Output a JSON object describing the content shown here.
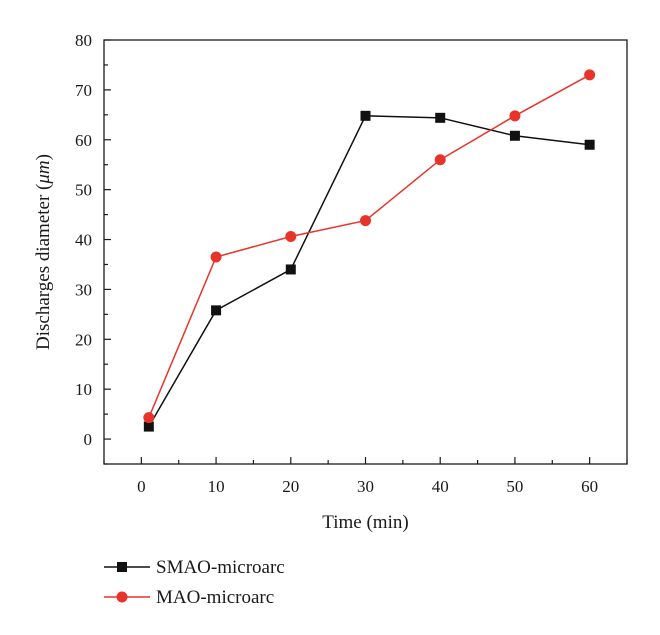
{
  "chart_data": {
    "type": "line",
    "title": "",
    "xlabel": "Time (min)",
    "ylabel_main": "Discharges diameter (",
    "ylabel_unit": "μm",
    "ylabel_close": ")",
    "xlim": [
      -5,
      65
    ],
    "ylim": [
      -5,
      80
    ],
    "xticks": [
      0,
      10,
      20,
      30,
      40,
      50,
      60
    ],
    "yticks": [
      0,
      10,
      20,
      30,
      40,
      50,
      60,
      70,
      80
    ],
    "grid": false,
    "legend_position": "bottom-left, below plot",
    "series": [
      {
        "name": "SMAO-microarc",
        "color": "#111111",
        "marker": "square",
        "x": [
          1,
          10,
          20,
          30,
          40,
          50,
          60
        ],
        "y": [
          2.5,
          25.8,
          34,
          64.8,
          64.4,
          60.8,
          59
        ]
      },
      {
        "name": "MAO-microarc",
        "color": "#e8332a",
        "marker": "circle",
        "x": [
          1,
          10,
          20,
          30,
          40,
          50,
          60
        ],
        "y": [
          4.3,
          36.5,
          40.6,
          43.8,
          56,
          64.8,
          73
        ]
      }
    ]
  }
}
